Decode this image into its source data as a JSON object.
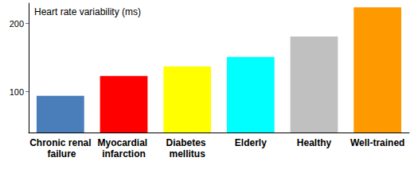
{
  "chart_data": {
    "type": "bar",
    "title": "Heart rate variability (ms)",
    "categories": [
      "Chronic renal failure",
      "Myocardial infarction",
      "Diabetes mellitus",
      "Elderly",
      "Healthy",
      "Well-trained"
    ],
    "values": [
      94,
      123,
      137,
      151,
      181,
      224
    ],
    "colors": [
      "#4a7ebb",
      "#ff0000",
      "#ffff00",
      "#00ffff",
      "#c0c0c0",
      "#ff9900"
    ],
    "ylim": [
      40,
      230
    ],
    "yticks": [
      100,
      200
    ],
    "grid": false
  }
}
